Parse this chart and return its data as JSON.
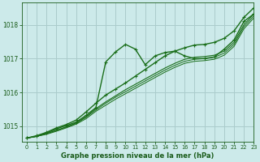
{
  "title": "Graphe pression niveau de la mer (hPa)",
  "background_color": "#cceaea",
  "grid_color": "#aacccc",
  "text_color": "#1a5c1a",
  "line_color": "#1a6e1a",
  "xlim": [
    -0.5,
    23
  ],
  "ylim": [
    1014.55,
    1018.65
  ],
  "yticks": [
    1015,
    1016,
    1017,
    1018
  ],
  "xticks": [
    0,
    1,
    2,
    3,
    4,
    5,
    6,
    7,
    8,
    9,
    10,
    11,
    12,
    13,
    14,
    15,
    16,
    17,
    18,
    19,
    20,
    21,
    22,
    23
  ],
  "jagged": [
    1014.65,
    1014.7,
    1014.8,
    1014.92,
    1015.02,
    1015.12,
    1015.32,
    1015.55,
    1016.9,
    1017.2,
    1017.42,
    1017.28,
    1016.82,
    1017.08,
    1017.18,
    1017.22,
    1017.08,
    1017.0,
    1017.0,
    1017.05,
    1017.28,
    1017.55,
    1018.1,
    1018.32
  ],
  "upper_line": [
    1014.65,
    1014.72,
    1014.82,
    1014.95,
    1015.05,
    1015.18,
    1015.42,
    1015.68,
    1015.92,
    1016.1,
    1016.28,
    1016.48,
    1016.68,
    1016.88,
    1017.08,
    1017.22,
    1017.32,
    1017.4,
    1017.42,
    1017.48,
    1017.6,
    1017.82,
    1018.22,
    1018.5
  ],
  "smooth1": [
    1014.65,
    1014.7,
    1014.78,
    1014.88,
    1014.98,
    1015.1,
    1015.28,
    1015.52,
    1015.72,
    1015.9,
    1016.08,
    1016.24,
    1016.4,
    1016.56,
    1016.72,
    1016.86,
    1016.98,
    1017.04,
    1017.06,
    1017.1,
    1017.22,
    1017.48,
    1018.0,
    1018.32
  ],
  "smooth2": [
    1014.65,
    1014.7,
    1014.78,
    1014.87,
    1014.97,
    1015.08,
    1015.26,
    1015.48,
    1015.68,
    1015.86,
    1016.02,
    1016.18,
    1016.34,
    1016.5,
    1016.66,
    1016.8,
    1016.92,
    1016.98,
    1017.0,
    1017.04,
    1017.16,
    1017.42,
    1017.94,
    1018.26
  ],
  "smooth3": [
    1014.65,
    1014.7,
    1014.76,
    1014.85,
    1014.95,
    1015.06,
    1015.22,
    1015.44,
    1015.62,
    1015.8,
    1015.96,
    1016.12,
    1016.28,
    1016.44,
    1016.6,
    1016.74,
    1016.86,
    1016.92,
    1016.94,
    1016.98,
    1017.1,
    1017.36,
    1017.88,
    1018.2
  ]
}
